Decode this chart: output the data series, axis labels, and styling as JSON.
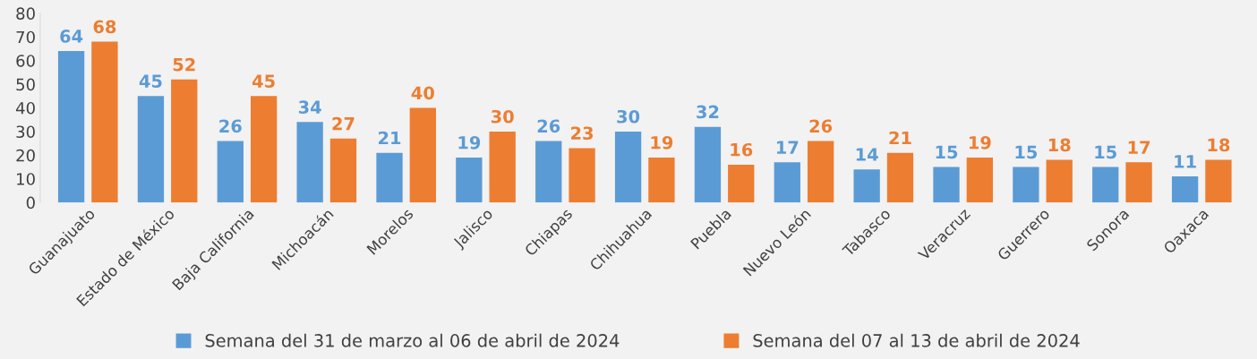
{
  "chart_data": {
    "type": "bar",
    "categories": [
      "Guanajuato",
      "Estado de México",
      "Baja California",
      "Michoacán",
      "Morelos",
      "Jalisco",
      "Chiapas",
      "Chihuahua",
      "Puebla",
      "Nuevo León",
      "Tabasco",
      "Veracruz",
      "Guerrero",
      "Sonora",
      "Oaxaca"
    ],
    "series": [
      {
        "name": "Semana del 31 de marzo al 06 de abril de 2024",
        "color": "#5b9bd5",
        "values": [
          64,
          45,
          26,
          34,
          21,
          19,
          26,
          30,
          32,
          17,
          14,
          15,
          15,
          15,
          11
        ]
      },
      {
        "name": "Semana del 07 al 13 de abril de 2024",
        "color": "#ed7d31",
        "values": [
          68,
          52,
          45,
          27,
          40,
          30,
          23,
          19,
          16,
          26,
          21,
          19,
          18,
          17,
          18
        ]
      }
    ],
    "ylim": [
      0,
      80
    ],
    "yticks": [
      0,
      10,
      20,
      30,
      40,
      50,
      60,
      70,
      80
    ],
    "data_labels": true,
    "grid": false,
    "legend": "bottom"
  }
}
